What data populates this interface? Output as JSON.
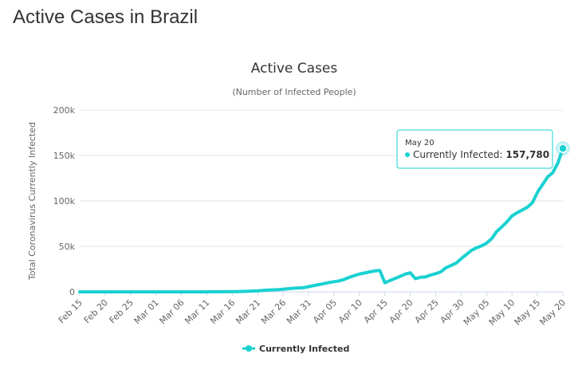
{
  "page": {
    "heading": "Active Cases in Brazil"
  },
  "chart_data": {
    "type": "line",
    "title": "Active Cases",
    "subtitle": "(Number of Infected People)",
    "xlabel": "",
    "ylabel": "Total Coronavirus Currently Infected",
    "ylim": [
      0,
      200000
    ],
    "y_ticks": [
      "0",
      "50k",
      "100k",
      "150k",
      "200k"
    ],
    "x_ticks": [
      "Feb 15",
      "Feb 20",
      "Feb 25",
      "Mar 01",
      "Mar 06",
      "Mar 11",
      "Mar 16",
      "Mar 21",
      "Mar 26",
      "Mar 31",
      "Apr 05",
      "Apr 10",
      "Apr 15",
      "Apr 20",
      "Apr 25",
      "Apr 30",
      "May 05",
      "May 10",
      "May 15",
      "May 20"
    ],
    "grid": true,
    "legend": "bottom-center",
    "color": "#1ad1d1",
    "series": [
      {
        "name": "Currently Infected",
        "x": [
          "Feb 15",
          "Feb 16",
          "Feb 17",
          "Feb 18",
          "Feb 19",
          "Feb 20",
          "Feb 21",
          "Feb 22",
          "Feb 23",
          "Feb 24",
          "Feb 25",
          "Feb 26",
          "Feb 27",
          "Feb 28",
          "Feb 29",
          "Mar 01",
          "Mar 02",
          "Mar 03",
          "Mar 04",
          "Mar 05",
          "Mar 06",
          "Mar 07",
          "Mar 08",
          "Mar 09",
          "Mar 10",
          "Mar 11",
          "Mar 12",
          "Mar 13",
          "Mar 14",
          "Mar 15",
          "Mar 16",
          "Mar 17",
          "Mar 18",
          "Mar 19",
          "Mar 20",
          "Mar 21",
          "Mar 22",
          "Mar 23",
          "Mar 24",
          "Mar 25",
          "Mar 26",
          "Mar 27",
          "Mar 28",
          "Mar 29",
          "Mar 30",
          "Mar 31",
          "Apr 01",
          "Apr 02",
          "Apr 03",
          "Apr 04",
          "Apr 05",
          "Apr 06",
          "Apr 07",
          "Apr 08",
          "Apr 09",
          "Apr 10",
          "Apr 11",
          "Apr 12",
          "Apr 13",
          "Apr 14",
          "Apr 15",
          "Apr 16",
          "Apr 17",
          "Apr 18",
          "Apr 19",
          "Apr 20",
          "Apr 21",
          "Apr 22",
          "Apr 23",
          "Apr 24",
          "Apr 25",
          "Apr 26",
          "Apr 27",
          "Apr 28",
          "Apr 29",
          "Apr 30",
          "May 01",
          "May 02",
          "May 03",
          "May 04",
          "May 05",
          "May 06",
          "May 07",
          "May 08",
          "May 09",
          "May 10",
          "May 11",
          "May 12",
          "May 13",
          "May 14",
          "May 15",
          "May 16",
          "May 17",
          "May 18",
          "May 19",
          "May 20"
        ],
        "values": [
          0,
          0,
          0,
          0,
          0,
          0,
          0,
          0,
          0,
          0,
          0,
          1,
          1,
          1,
          2,
          2,
          2,
          2,
          4,
          8,
          13,
          19,
          25,
          25,
          31,
          38,
          52,
          77,
          121,
          200,
          234,
          291,
          428,
          621,
          904,
          1128,
          1546,
          1891,
          2201,
          2433,
          2915,
          3417,
          3904,
          4256,
          4579,
          5717,
          6836,
          7910,
          9056,
          10278,
          11130,
          12056,
          13717,
          15927,
          17857,
          19638,
          20727,
          21962,
          22950,
          23630,
          10000,
          12500,
          14700,
          17000,
          19500,
          21000,
          14500,
          16000,
          16500,
          18500,
          20000,
          22000,
          26500,
          29000,
          31500,
          36500,
          41000,
          45500,
          48500,
          50500,
          53500,
          58500,
          66500,
          71500,
          77000,
          83500,
          87000,
          90000,
          93000,
          98000,
          109500,
          118000,
          126500,
          131000,
          141500,
          157780
        ]
      }
    ]
  },
  "tooltip": {
    "date": "May 20",
    "label": "Currently Infected:",
    "value": "157,780"
  }
}
